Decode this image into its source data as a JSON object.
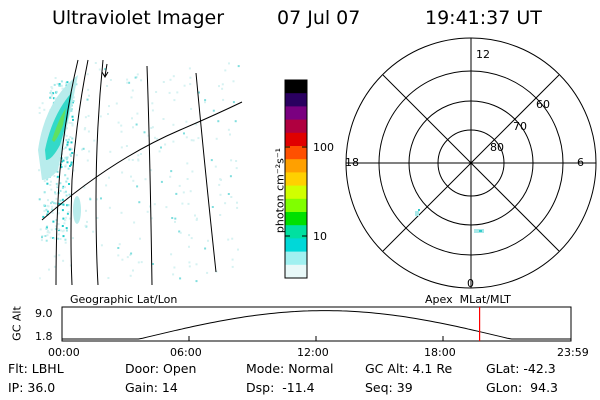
{
  "header": {
    "title": "Ultraviolet Imager",
    "date": "07 Jul 07",
    "time": "19:41:37 UT"
  },
  "colorbar": {
    "unit_label": "photon cm⁻²s⁻¹",
    "ticks": [
      {
        "label": "100",
        "value": 100
      },
      {
        "label": "10",
        "value": 10
      }
    ],
    "colors": [
      "#000000",
      "#2a0060",
      "#7a0080",
      "#b00040",
      "#e00000",
      "#ff5000",
      "#ffa000",
      "#ffd000",
      "#d0ff00",
      "#80ff00",
      "#00e000",
      "#00e0a0",
      "#00d8d8",
      "#a0f0f0",
      "#e8f8f8"
    ]
  },
  "polar_plot": {
    "mlt_labels": {
      "top": "12",
      "left": "18",
      "right": "6",
      "bottom": "0"
    },
    "lat_labels": [
      "60",
      "70",
      "80"
    ]
  },
  "altitude_panel": {
    "left_title": "Geographic Lat/Lon",
    "right_title": "Apex  MLat/MLT",
    "ylabel": "GC Alt",
    "y_top": "9.0",
    "y_bottom": "1.8",
    "time_labels": [
      "00:00",
      "06:00",
      "12:00",
      "18:00",
      "23:59"
    ],
    "marker_time_hours": 19.69,
    "marker_color": "#ff0000"
  },
  "info": {
    "row1": [
      "Flt: LBHL",
      "Door: Open",
      "Mode: Normal",
      "GC Alt: 4.1 Re",
      "GLat: -42.3"
    ],
    "row2": [
      "IP: 36.0",
      "Gain: 14",
      "Dsp:  -11.4",
      "Seq: 39",
      "GLon:  94.3"
    ]
  }
}
